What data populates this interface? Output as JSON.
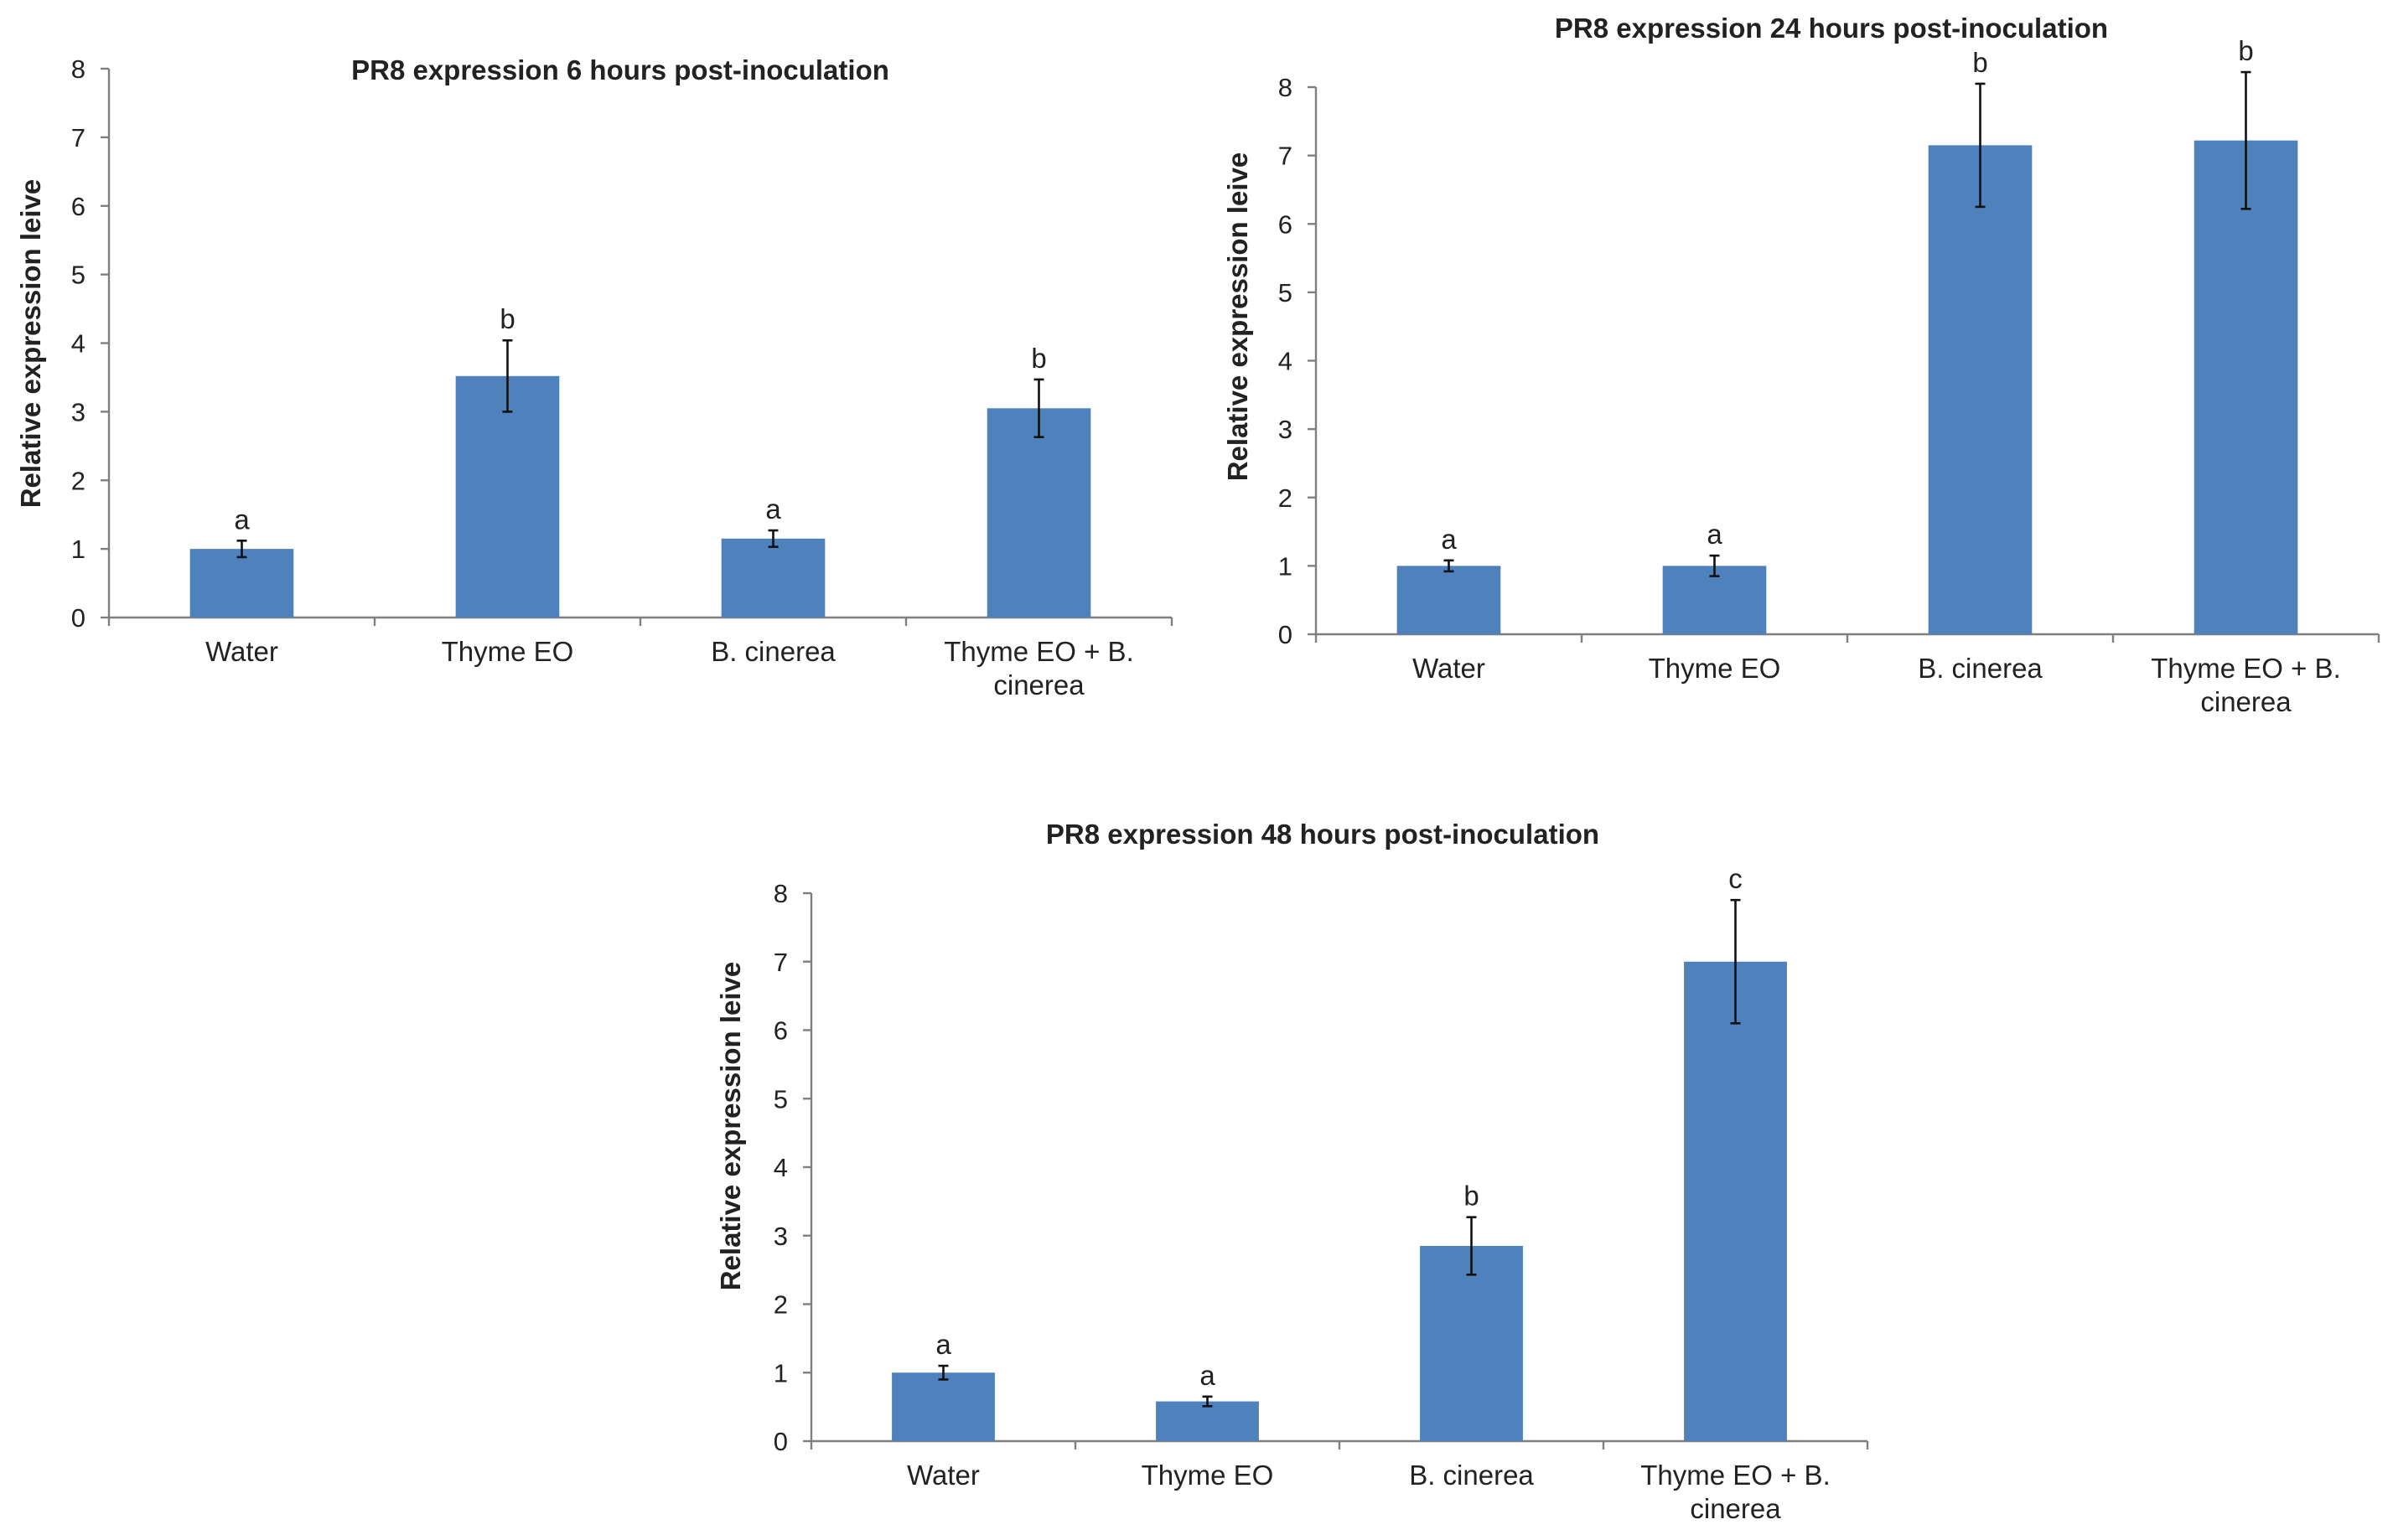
{
  "chart_data": [
    {
      "type": "bar",
      "title": "PR8 expression 6 hours post-inoculation",
      "ylabel": "Relative expression leive",
      "xlabel": "",
      "ylim": [
        0,
        8
      ],
      "yticks": [
        "0",
        "1",
        "2",
        "3",
        "4",
        "5",
        "6",
        "7",
        "8"
      ],
      "categories": [
        [
          "Water"
        ],
        [
          "Thyme EO"
        ],
        [
          "B. cinerea"
        ],
        [
          "Thyme EO + B.",
          "cinerea"
        ]
      ],
      "values": [
        1.0,
        3.52,
        1.15,
        3.05
      ],
      "errors": [
        0.12,
        0.52,
        0.12,
        0.42
      ],
      "significance": [
        "a",
        "b",
        "a",
        "b"
      ],
      "color": "#4f81bd"
    },
    {
      "type": "bar",
      "title": "PR8 expression 24 hours post-inoculation",
      "ylabel": "Relative expression leive",
      "xlabel": "",
      "ylim": [
        0,
        8
      ],
      "yticks": [
        "0",
        "1",
        "2",
        "3",
        "4",
        "5",
        "6",
        "7",
        "8"
      ],
      "categories": [
        [
          "Water"
        ],
        [
          "Thyme EO"
        ],
        [
          "B. cinerea"
        ],
        [
          "Thyme EO + B.",
          "cinerea"
        ]
      ],
      "values": [
        1.0,
        1.0,
        7.15,
        7.22
      ],
      "errors": [
        0.08,
        0.15,
        0.9,
        1.0
      ],
      "significance": [
        "a",
        "a",
        "b",
        "b"
      ],
      "color": "#4f81bd"
    },
    {
      "type": "bar",
      "title": "PR8 expression 48 hours post-inoculation",
      "ylabel": "Relative expression leive",
      "xlabel": "",
      "ylim": [
        0,
        8
      ],
      "yticks": [
        "0",
        "1",
        "2",
        "3",
        "4",
        "5",
        "6",
        "7",
        "8"
      ],
      "categories": [
        [
          "Water"
        ],
        [
          "Thyme EO"
        ],
        [
          "B. cinerea"
        ],
        [
          "Thyme EO + B.",
          "cinerea"
        ]
      ],
      "values": [
        1.0,
        0.58,
        2.85,
        7.0
      ],
      "errors": [
        0.1,
        0.07,
        0.42,
        0.9
      ],
      "significance": [
        "a",
        "a",
        "b",
        "c"
      ],
      "color": "#4f81bd"
    }
  ]
}
